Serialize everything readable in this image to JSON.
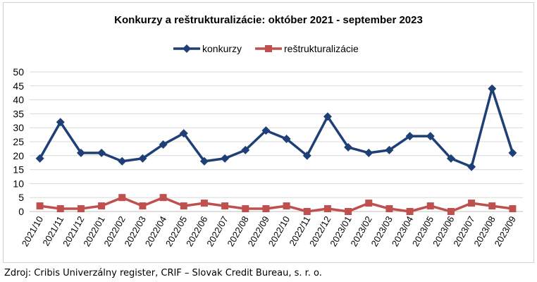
{
  "chart_data": {
    "type": "line",
    "title": "Konkurzy a reštrukturalizácie: október 2021 - september 2023",
    "xlabel": "",
    "ylabel": "",
    "ylim": [
      0,
      50
    ],
    "yticks": [
      0,
      5,
      10,
      15,
      20,
      25,
      30,
      35,
      40,
      45,
      50
    ],
    "grid": true,
    "legend": "top",
    "categories": [
      "2021/10",
      "2021/11",
      "2021/12",
      "2022/01",
      "2022/02",
      "2022/03",
      "2022/04",
      "2022/05",
      "2022/06",
      "2022/07",
      "2022/08",
      "2022/09",
      "2022/10",
      "2022/11",
      "2022/12",
      "2023/01",
      "2023/02",
      "2023/03",
      "2023/04",
      "2023/05",
      "2023/06",
      "2023/07",
      "2023/08",
      "2023/09"
    ],
    "series": [
      {
        "name": "konkurzy",
        "color": "#1f3f77",
        "marker": "diamond",
        "values": [
          19,
          32,
          21,
          21,
          18,
          19,
          24,
          28,
          18,
          19,
          22,
          29,
          26,
          20,
          34,
          23,
          21,
          22,
          27,
          27,
          19,
          16,
          44,
          21
        ]
      },
      {
        "name": "reštrukturalizácie",
        "color": "#c0504d",
        "marker": "square",
        "values": [
          2,
          1,
          1,
          2,
          5,
          2,
          5,
          2,
          3,
          2,
          1,
          1,
          2,
          0,
          1,
          0,
          3,
          1,
          0,
          2,
          0,
          3,
          2,
          1
        ]
      }
    ]
  },
  "source": "Zdroj: Cribis Univerzálny register, CRIF – Slovak Credit Bureau, s. r. o."
}
